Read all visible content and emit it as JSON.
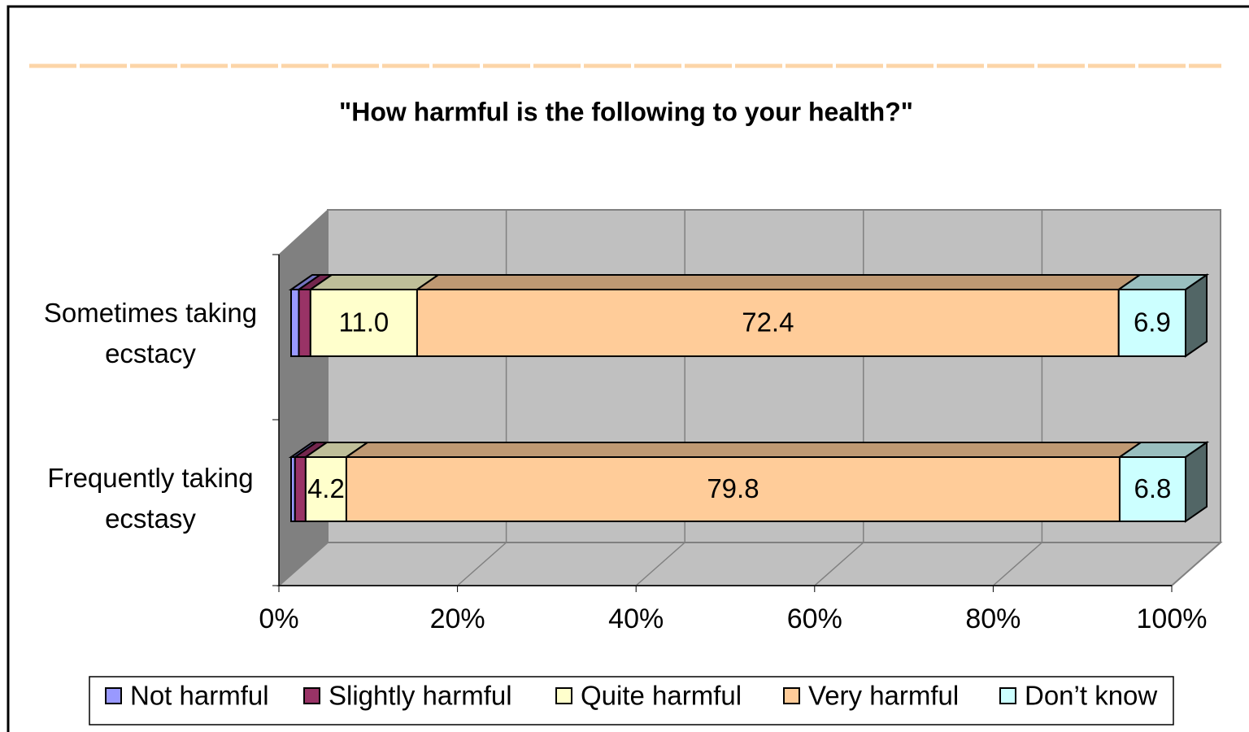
{
  "chart_data": {
    "type": "bar3d_percent_stacked",
    "title": "\"How harmful is the following to your health?\"",
    "categories": [
      "Sometimes taking ecstacy",
      "Frequently taking ecstasy"
    ],
    "series": [
      {
        "name": "Not harmful",
        "color": "#9999ff",
        "values": [
          0.8,
          0.4
        ]
      },
      {
        "name": "Slightly harmful",
        "color": "#993366",
        "values": [
          1.2,
          1.1
        ]
      },
      {
        "name": "Quite harmful",
        "color": "#ffffcc",
        "values": [
          11.0,
          4.2
        ],
        "value_labels": [
          "11.0",
          "4.2"
        ]
      },
      {
        "name": "Very harmful",
        "color": "#ffcc99",
        "values": [
          72.4,
          79.8
        ],
        "value_labels": [
          "72.4",
          "79.8"
        ]
      },
      {
        "name": "Don’t know",
        "color": "#ccffff",
        "values": [
          6.9,
          6.8
        ],
        "value_labels": [
          "6.9",
          "6.8"
        ]
      }
    ],
    "percent_stacked": true,
    "xlim": [
      0,
      100
    ],
    "xticks": [
      {
        "value": 0,
        "label": "0%"
      },
      {
        "value": 20,
        "label": "20%"
      },
      {
        "value": 40,
        "label": "40%"
      },
      {
        "value": 60,
        "label": "60%"
      },
      {
        "value": 80,
        "label": "80%"
      },
      {
        "value": 100,
        "label": "100%"
      }
    ],
    "grid": true,
    "legend": "bottom"
  }
}
